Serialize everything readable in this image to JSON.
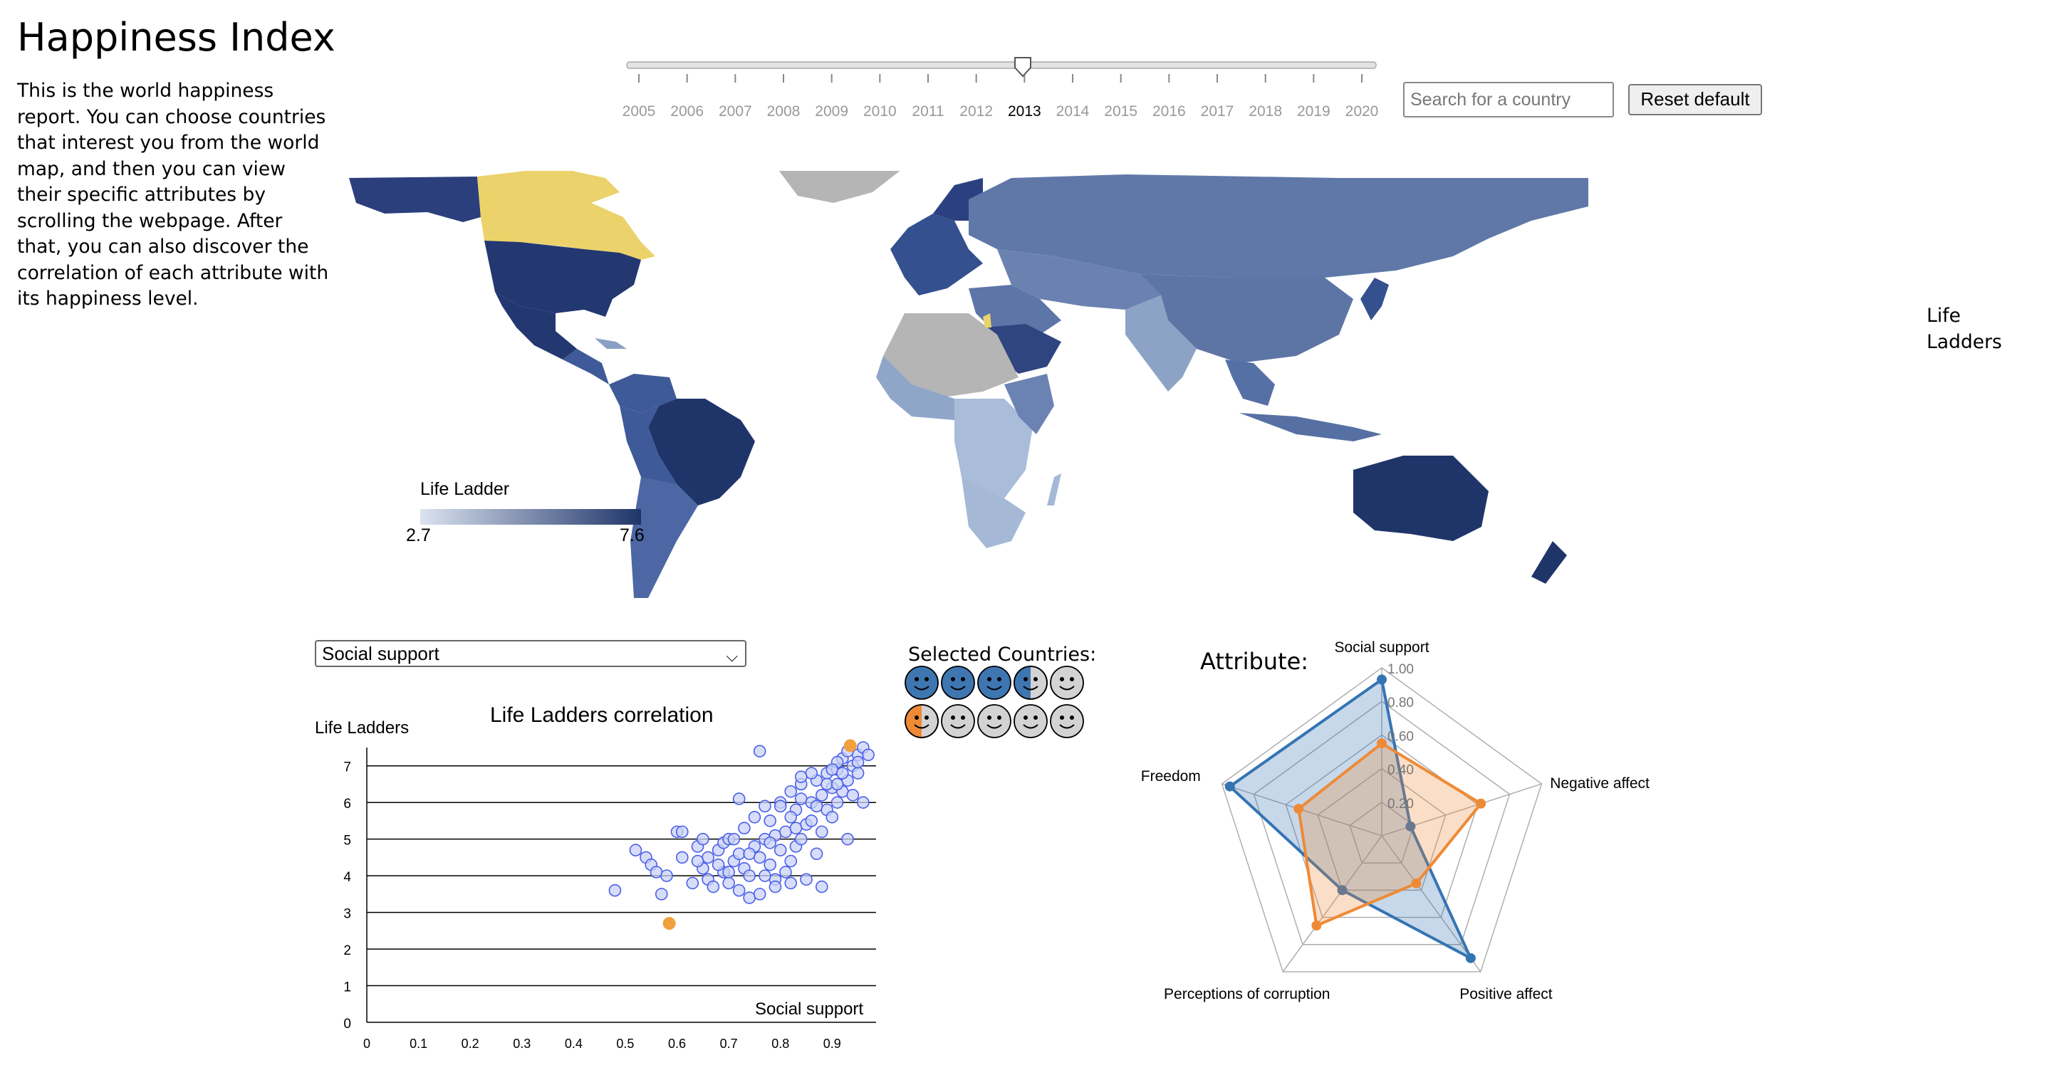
{
  "header": {
    "title": "Happiness Index",
    "intro": "This is the world happiness report. You can choose countries that interest you from the world map, and then you can view their specific attributes by scrolling the webpage. After that, you can also discover the correlation of each attribute with its happiness level."
  },
  "year_slider": {
    "years": [
      "2005",
      "2006",
      "2007",
      "2008",
      "2009",
      "2010",
      "2011",
      "2012",
      "2013",
      "2014",
      "2015",
      "2016",
      "2017",
      "2018",
      "2019",
      "2020"
    ],
    "selected": "2013"
  },
  "search": {
    "placeholder": "Search for a country"
  },
  "reset_label": "Reset default",
  "side_label": "Life Ladders",
  "map": {
    "legend_title": "Life Ladder",
    "legend_min": "2.7",
    "legend_max": "7.6",
    "colors": {
      "low": "#cdd9ec",
      "high": "#1f3a70",
      "no_data": "#b5b5b5",
      "selected": "#ecd36a",
      "ocean": "#ffffff"
    }
  },
  "attribute_select": {
    "value": "Social support"
  },
  "chart_data": [
    {
      "type": "scatter",
      "title": "Life Ladders correlation",
      "xlabel": "Social support",
      "ylabel": "Life Ladders",
      "xlim": [
        0,
        1
      ],
      "ylim": [
        0,
        7.5
      ],
      "xticks": [
        "0",
        "0.1",
        "0.2",
        "0.3",
        "0.4",
        "0.5",
        "0.6",
        "0.7",
        "0.8",
        "0.9"
      ],
      "yticks": [
        "0",
        "1",
        "2",
        "3",
        "4",
        "5",
        "6",
        "7"
      ],
      "grid": "horizontal",
      "point_color": "#4a5fe8",
      "highlight_color": "#f0a03c",
      "points": [
        [
          0.48,
          3.6
        ],
        [
          0.52,
          4.7
        ],
        [
          0.54,
          4.5
        ],
        [
          0.55,
          4.3
        ],
        [
          0.56,
          4.1
        ],
        [
          0.57,
          3.5
        ],
        [
          0.58,
          4.0
        ],
        [
          0.6,
          5.2
        ],
        [
          0.61,
          5.2
        ],
        [
          0.61,
          4.5
        ],
        [
          0.63,
          3.8
        ],
        [
          0.64,
          4.8
        ],
        [
          0.65,
          4.2
        ],
        [
          0.65,
          5.0
        ],
        [
          0.66,
          4.5
        ],
        [
          0.66,
          3.9
        ],
        [
          0.67,
          3.7
        ],
        [
          0.68,
          4.7
        ],
        [
          0.69,
          4.1
        ],
        [
          0.69,
          4.9
        ],
        [
          0.7,
          5.0
        ],
        [
          0.7,
          3.8
        ],
        [
          0.71,
          4.4
        ],
        [
          0.71,
          5.0
        ],
        [
          0.72,
          4.6
        ],
        [
          0.72,
          3.6
        ],
        [
          0.73,
          4.2
        ],
        [
          0.73,
          5.3
        ],
        [
          0.74,
          4.0
        ],
        [
          0.74,
          3.4
        ],
        [
          0.75,
          4.8
        ],
        [
          0.75,
          5.6
        ],
        [
          0.76,
          3.5
        ],
        [
          0.76,
          4.5
        ],
        [
          0.77,
          5.0
        ],
        [
          0.77,
          5.9
        ],
        [
          0.78,
          4.3
        ],
        [
          0.78,
          5.5
        ],
        [
          0.79,
          5.1
        ],
        [
          0.79,
          3.9
        ],
        [
          0.8,
          4.7
        ],
        [
          0.8,
          6.0
        ],
        [
          0.81,
          5.2
        ],
        [
          0.81,
          4.1
        ],
        [
          0.82,
          6.3
        ],
        [
          0.82,
          3.8
        ],
        [
          0.83,
          5.8
        ],
        [
          0.83,
          4.8
        ],
        [
          0.84,
          6.1
        ],
        [
          0.84,
          5.0
        ],
        [
          0.85,
          5.4
        ],
        [
          0.85,
          3.9
        ],
        [
          0.86,
          6.0
        ],
        [
          0.86,
          5.5
        ],
        [
          0.87,
          6.6
        ],
        [
          0.87,
          4.6
        ],
        [
          0.88,
          6.2
        ],
        [
          0.88,
          5.2
        ],
        [
          0.89,
          5.8
        ],
        [
          0.89,
          6.8
        ],
        [
          0.9,
          6.4
        ],
        [
          0.9,
          5.6
        ],
        [
          0.91,
          6.9
        ],
        [
          0.91,
          6.0
        ],
        [
          0.92,
          7.2
        ],
        [
          0.92,
          6.3
        ],
        [
          0.93,
          6.6
        ],
        [
          0.93,
          5.0
        ],
        [
          0.94,
          7.0
        ],
        [
          0.94,
          6.2
        ],
        [
          0.95,
          7.3
        ],
        [
          0.95,
          6.8
        ],
        [
          0.96,
          7.5
        ],
        [
          0.96,
          6.0
        ],
        [
          0.97,
          7.3
        ],
        [
          0.93,
          7.4
        ],
        [
          0.91,
          7.1
        ],
        [
          0.89,
          6.5
        ],
        [
          0.86,
          6.8
        ],
        [
          0.84,
          6.5
        ],
        [
          0.82,
          5.6
        ],
        [
          0.8,
          5.9
        ],
        [
          0.78,
          4.9
        ],
        [
          0.76,
          7.4
        ],
        [
          0.72,
          6.1
        ],
        [
          0.68,
          4.3
        ],
        [
          0.64,
          4.4
        ],
        [
          0.7,
          4.1
        ],
        [
          0.74,
          4.6
        ],
        [
          0.82,
          4.4
        ],
        [
          0.88,
          3.7
        ],
        [
          0.79,
          3.7
        ],
        [
          0.84,
          6.7
        ],
        [
          0.9,
          6.9
        ],
        [
          0.92,
          6.8
        ],
        [
          0.95,
          7.1
        ],
        [
          0.91,
          6.5
        ],
        [
          0.87,
          5.9
        ],
        [
          0.83,
          5.3
        ],
        [
          0.77,
          4.0
        ]
      ],
      "highlighted": [
        [
          0.585,
          2.7
        ],
        [
          0.935,
          7.55
        ]
      ]
    },
    {
      "type": "radar",
      "title": "Attribute:",
      "axes": [
        "Social support",
        "Negative affect",
        "Positive affect",
        "Perceptions of corruption",
        "Freedom"
      ],
      "rings": [
        "0.20",
        "0.40",
        "0.60",
        "0.80",
        "1.00"
      ],
      "series": [
        {
          "color": "#3574b3",
          "values": [
            0.93,
            0.18,
            0.9,
            0.4,
            0.95
          ]
        },
        {
          "color": "#ee8a36",
          "values": [
            0.55,
            0.62,
            0.35,
            0.66,
            0.52
          ]
        }
      ]
    }
  ],
  "selected_countries": {
    "title": "Selected Countries:",
    "rows": [
      [
        "#3e76b1",
        "#3e76b1",
        "#3e76b1",
        "half-blue",
        "#d3d3d3"
      ],
      [
        "half-orange",
        "#d3d3d3",
        "#d3d3d3",
        "#d3d3d3",
        "#d3d3d3"
      ]
    ]
  }
}
